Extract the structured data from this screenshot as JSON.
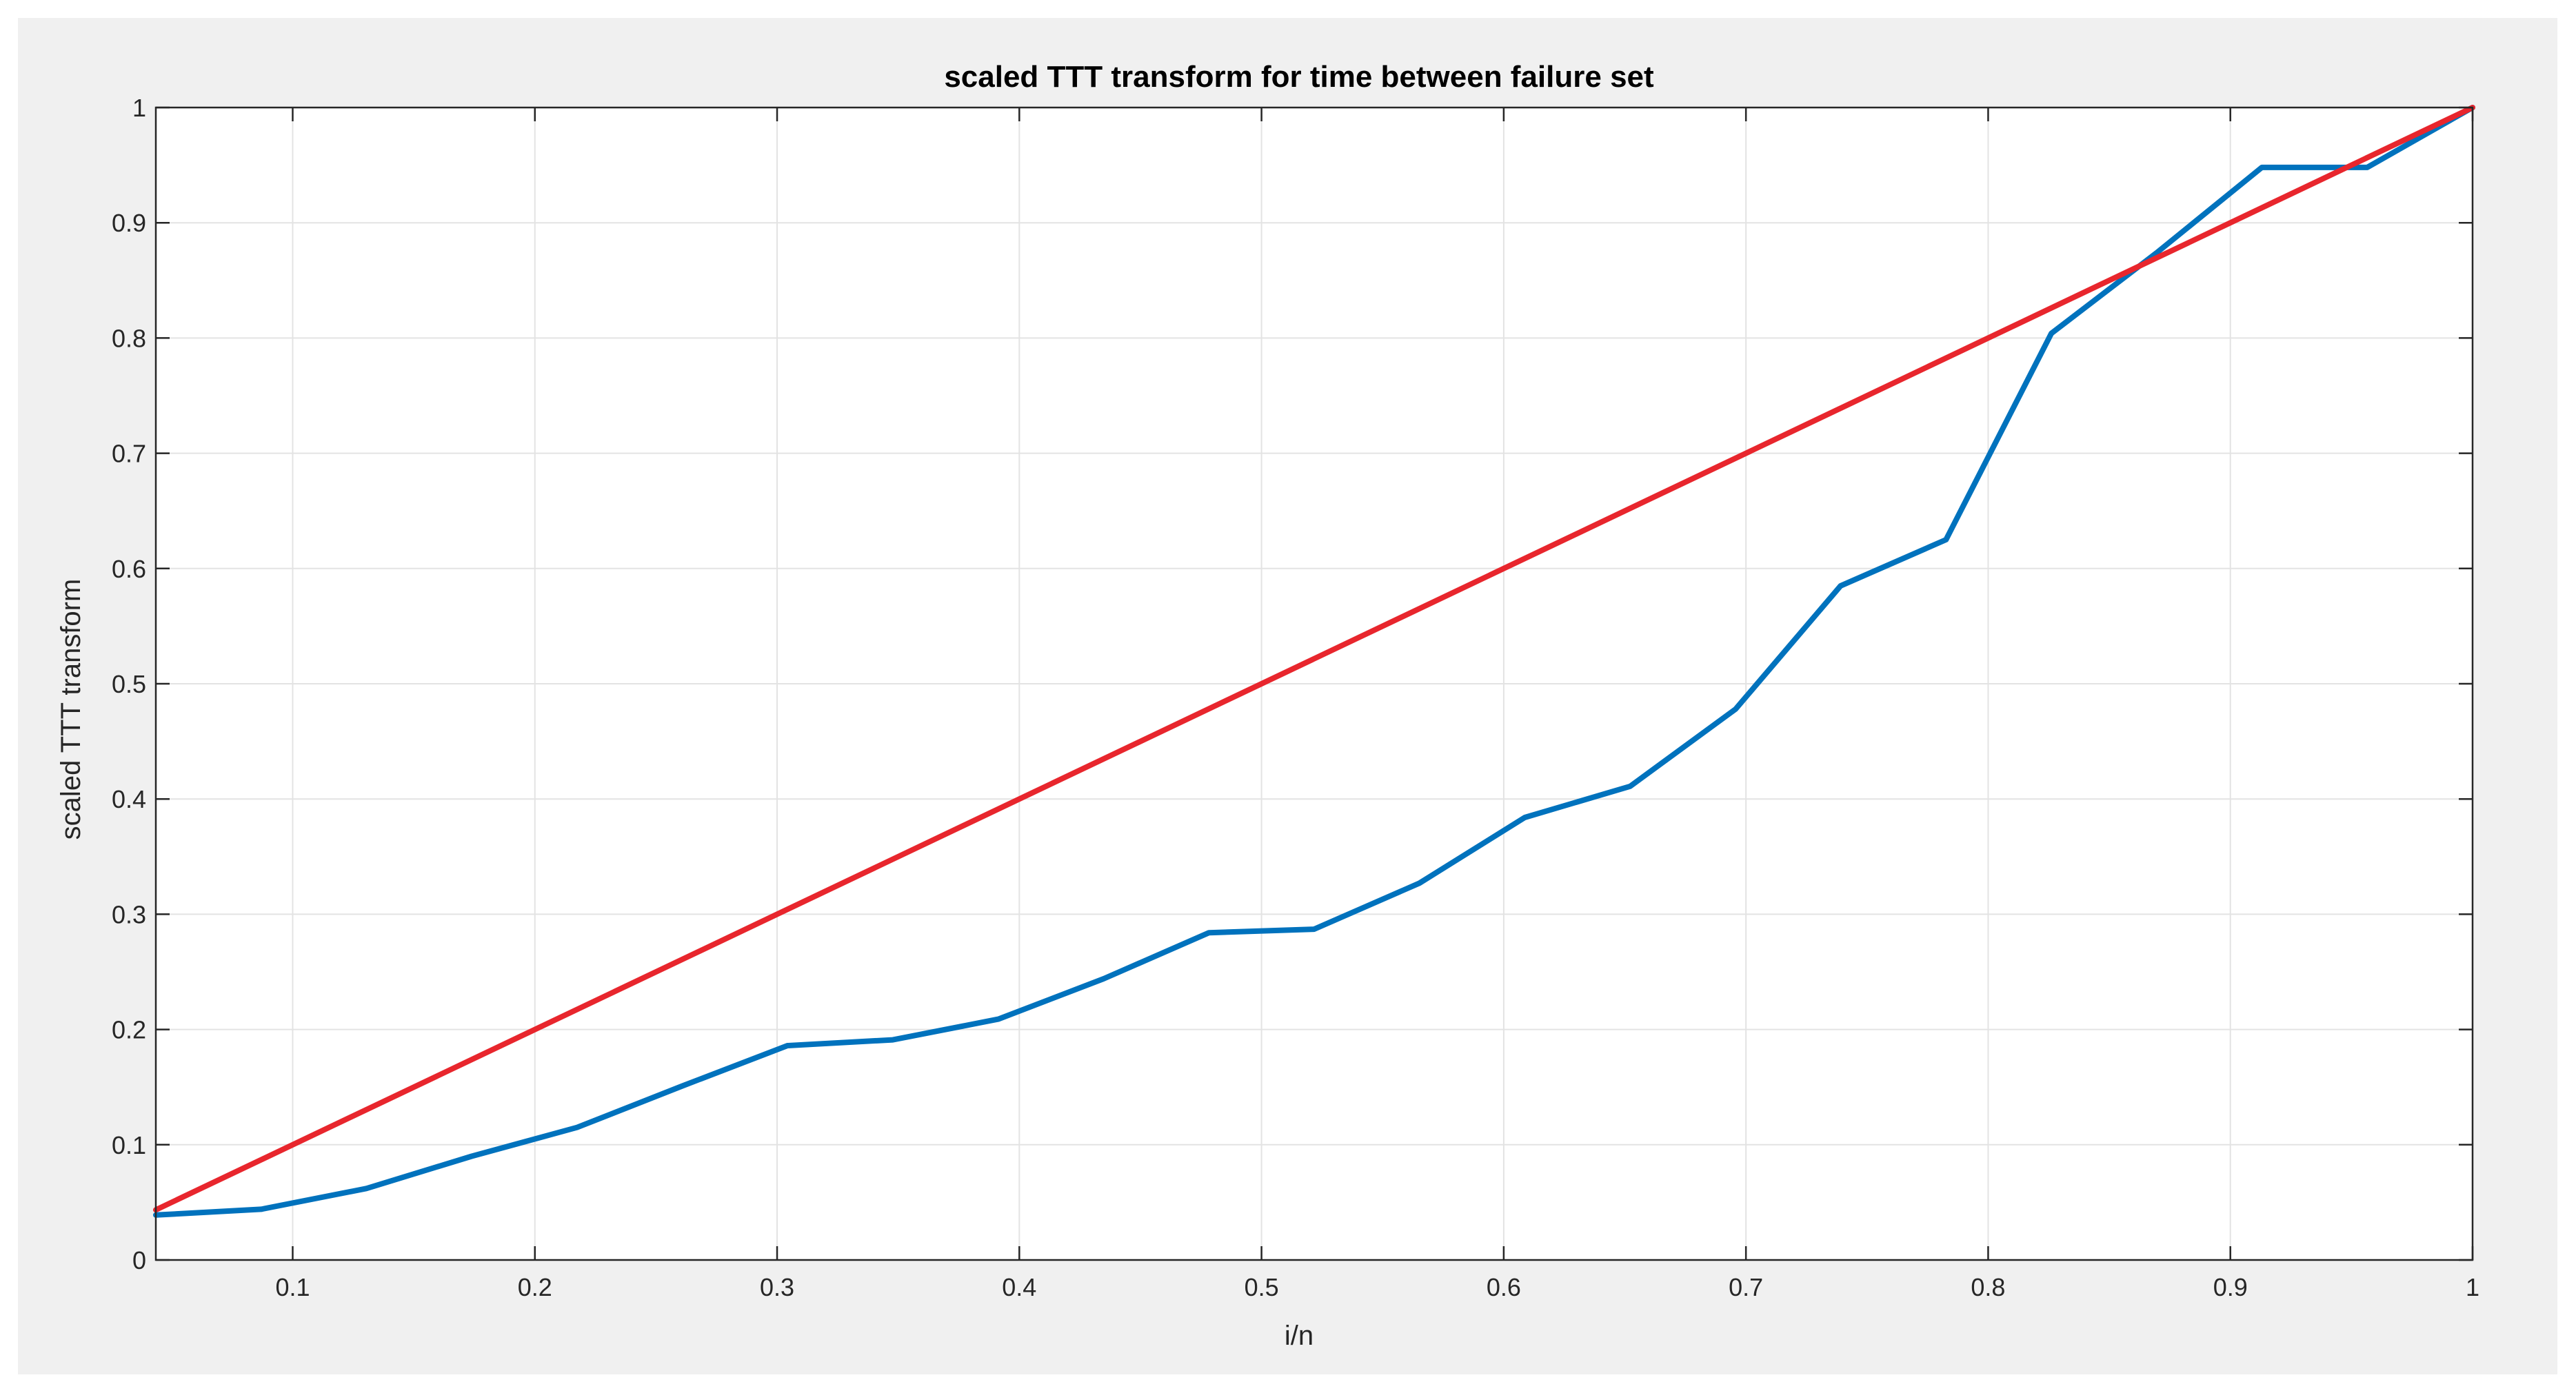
{
  "chart_data": {
    "type": "line",
    "title": "scaled TTT transform for time between failure set",
    "xlabel": "i/n",
    "ylabel": "scaled TTT transform",
    "xlim": [
      0.0435,
      1.0
    ],
    "ylim": [
      0,
      1
    ],
    "x_ticks": [
      0.1,
      0.2,
      0.3,
      0.4,
      0.5,
      0.6,
      0.7,
      0.8,
      0.9,
      1
    ],
    "y_ticks": [
      0,
      0.1,
      0.2,
      0.3,
      0.4,
      0.5,
      0.6,
      0.7,
      0.8,
      0.9,
      1
    ],
    "x_tick_labels": [
      "0.1",
      "0.2",
      "0.3",
      "0.4",
      "0.5",
      "0.6",
      "0.7",
      "0.8",
      "0.9",
      "1"
    ],
    "y_tick_labels": [
      "0",
      "0.1",
      "0.2",
      "0.3",
      "0.4",
      "0.5",
      "0.6",
      "0.7",
      "0.8",
      "0.9",
      "1"
    ],
    "grid": true,
    "box": true,
    "colors": {
      "figure_bg": "#f0f0f0",
      "axes_bg": "#ffffff",
      "grid": "#e3e3e3",
      "axis": "#262626"
    },
    "series": [
      {
        "color": "#0072bd",
        "x": [
          0.0435,
          0.087,
          0.1304,
          0.1739,
          0.2174,
          0.2609,
          0.3043,
          0.3478,
          0.3913,
          0.4348,
          0.4783,
          0.5217,
          0.5652,
          0.6087,
          0.6522,
          0.6957,
          0.7391,
          0.7826,
          0.8261,
          0.8696,
          0.913,
          0.9565,
          1.0
        ],
        "y": [
          0.039,
          0.044,
          0.062,
          0.09,
          0.115,
          0.151,
          0.186,
          0.191,
          0.209,
          0.244,
          0.284,
          0.287,
          0.327,
          0.384,
          0.411,
          0.478,
          0.585,
          0.625,
          0.804,
          0.874,
          0.948,
          0.948,
          1.0
        ]
      },
      {
        "color": "#e8262d",
        "x": [
          0.0435,
          1.0
        ],
        "y": [
          0.0435,
          1.0
        ]
      }
    ]
  }
}
